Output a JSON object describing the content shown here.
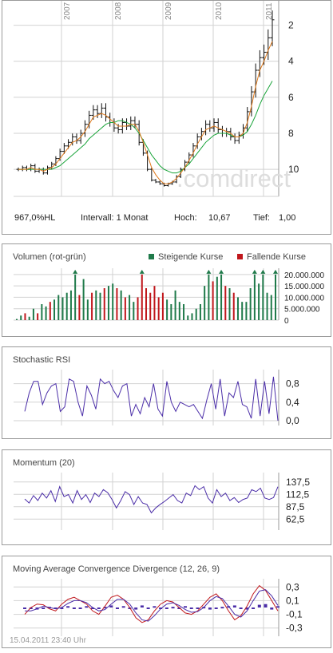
{
  "main": {
    "years": [
      "2007",
      "2008",
      "2009",
      "2010",
      "2011"
    ],
    "y_ticks": [
      "10",
      "8",
      "6",
      "4",
      "2"
    ],
    "watermark": ".comdirect",
    "change": "967,0%HL",
    "interval_label": "Intervall: 1 Monat",
    "high_label": "Hoch:",
    "high_value": "10,67",
    "low_label": "Tief:",
    "low_value": "1,00"
  },
  "colors": {
    "up": "#1f7a4a",
    "down": "#c0171c",
    "line": "#4b2ea8",
    "ma_fast": "#e07a1b",
    "ma_slow": "#1aa43a",
    "grid": "#d2d2d2"
  },
  "volume": {
    "title": "Volumen (rot-grün)",
    "legend_up": "Steigende Kurse",
    "legend_down": "Fallende Kurse",
    "ticks": [
      "20.000.000",
      "15.000.000",
      "10.000.000",
      "5.000.000",
      "0"
    ]
  },
  "stoch": {
    "title": "Stochastic RSI",
    "ticks": [
      "0,8",
      "0,4",
      "0,0"
    ]
  },
  "momentum": {
    "title": "Momentum (20)",
    "ticks": [
      "137,5",
      "112,5",
      "87,5",
      "62,5"
    ]
  },
  "macd": {
    "title": "Moving Average Convergence Divergence (12, 26, 9)",
    "ticks": [
      "0,3",
      "0,1",
      "-0,1",
      "-0,3"
    ]
  },
  "timestamp": "15.04.2011 23:40 Uhr",
  "chart_data": [
    {
      "type": "candlestick",
      "title": "",
      "ylim": [
        0.5,
        11
      ],
      "y_ticks": [
        2,
        4,
        6,
        8,
        10
      ],
      "x_labels": [
        "2007",
        "2008",
        "2009",
        "2010",
        "2011"
      ],
      "close": [
        2.0,
        2.1,
        2.0,
        2.2,
        1.9,
        2.0,
        1.8,
        2.1,
        2.3,
        2.6,
        3.0,
        3.3,
        3.5,
        3.8,
        3.6,
        4.0,
        4.5,
        5.0,
        5.3,
        5.1,
        5.4,
        4.9,
        4.6,
        4.3,
        4.2,
        4.6,
        4.4,
        4.7,
        4.5,
        3.5,
        2.9,
        2.0,
        1.4,
        1.3,
        1.2,
        1.1,
        1.2,
        1.3,
        1.6,
        2.0,
        2.4,
        2.8,
        3.3,
        3.8,
        4.1,
        4.5,
        4.3,
        4.6,
        4.2,
        4.0,
        4.1,
        3.8,
        3.6,
        3.9,
        4.3,
        5.2,
        6.3,
        7.5,
        8.2,
        8.5,
        9.3,
        10.3
      ],
      "ma_fast": [
        2.0,
        2.0,
        2.0,
        2.1,
        2.0,
        2.0,
        1.9,
        2.0,
        2.1,
        2.3,
        2.6,
        2.9,
        3.2,
        3.5,
        3.6,
        3.8,
        4.1,
        4.5,
        4.9,
        5.0,
        5.1,
        5.0,
        4.8,
        4.6,
        4.4,
        4.4,
        4.4,
        4.5,
        4.5,
        4.1,
        3.5,
        2.8,
        2.1,
        1.7,
        1.4,
        1.2,
        1.2,
        1.3,
        1.5,
        1.8,
        2.1,
        2.5,
        2.9,
        3.4,
        3.8,
        4.2,
        4.3,
        4.4,
        4.3,
        4.2,
        4.1,
        4.0,
        3.8,
        3.8,
        4.0,
        4.6,
        5.5,
        6.6,
        7.5,
        8.0,
        8.6,
        9.1
      ],
      "ma_slow": [
        2.0,
        2.0,
        2.0,
        2.0,
        2.0,
        2.0,
        2.0,
        2.0,
        2.0,
        2.1,
        2.2,
        2.4,
        2.6,
        2.8,
        3.0,
        3.2,
        3.4,
        3.7,
        3.9,
        4.1,
        4.3,
        4.5,
        4.6,
        4.6,
        4.7,
        4.7,
        4.6,
        4.5,
        4.3,
        4.0,
        3.6,
        3.2,
        2.8,
        2.5,
        2.2,
        2.0,
        1.9,
        1.8,
        1.8,
        1.9,
        2.1,
        2.3,
        2.6,
        2.9,
        3.2,
        3.5,
        3.7,
        3.9,
        4.0,
        4.0,
        4.0,
        3.9,
        3.8,
        3.8,
        3.9,
        4.1,
        4.5,
        5.0,
        5.6,
        6.1,
        6.5,
        6.9
      ]
    },
    {
      "type": "bar",
      "title": "Volumen (rot-grün)",
      "ylim": [
        0,
        21000000
      ],
      "values": [
        500000,
        2000000,
        3000000,
        1500000,
        5000000,
        3000000,
        7000000,
        6000000,
        8000000,
        9000000,
        11000000,
        10000000,
        12000000,
        13000000,
        20000000,
        11000000,
        18000000,
        9000000,
        12000000,
        13000000,
        12000000,
        14000000,
        15000000,
        16000000,
        14000000,
        13000000,
        10000000,
        11000000,
        8000000,
        10000000,
        20000000,
        14000000,
        12000000,
        15000000,
        10000000,
        12000000,
        9000000,
        7000000,
        13000000,
        8000000,
        7000000,
        2000000,
        3000000,
        5000000,
        7000000,
        15000000,
        20000000,
        17000000,
        19000000,
        20000000,
        15000000,
        14000000,
        12000000,
        10000000,
        8000000,
        8000000,
        14000000,
        20000000,
        16000000,
        20000000,
        12000000,
        11000000,
        20000000
      ],
      "up": [
        1,
        1,
        0,
        1,
        1,
        0,
        1,
        1,
        0,
        1,
        1,
        1,
        1,
        1,
        1,
        0,
        1,
        1,
        0,
        1,
        1,
        0,
        1,
        1,
        0,
        1,
        0,
        1,
        1,
        0,
        0,
        0,
        0,
        0,
        0,
        0,
        1,
        1,
        1,
        1,
        1,
        1,
        1,
        1,
        1,
        1,
        1,
        0,
        1,
        1,
        0,
        1,
        0,
        1,
        1,
        1,
        1,
        1,
        1,
        1,
        1,
        1,
        1
      ]
    },
    {
      "type": "line",
      "title": "Stochastic RSI",
      "ylim": [
        0,
        1
      ],
      "series": [
        {
          "values": [
            0.2,
            0.6,
            0.85,
            0.85,
            0.35,
            0.6,
            0.75,
            0.8,
            0.2,
            0.3,
            0.9,
            0.85,
            0.4,
            0.1,
            0.75,
            0.55,
            0.25,
            0.9,
            0.8,
            0.85,
            0.65,
            0.5,
            0.75,
            0.8,
            0.1,
            0.35,
            0.15,
            0.5,
            0.3,
            0.8,
            0.25,
            0.1,
            0.85,
            0.4,
            0.2,
            0.4,
            0.35,
            0.3,
            0.35,
            0.2,
            0.05,
            0.45,
            0.8,
            0.25,
            0.9,
            0.1,
            0.6,
            0.5,
            0.85,
            0.35,
            0.3,
            0.05,
            0.9,
            0.1,
            0.85,
            0.15,
            0.95,
            0.0
          ]
        }
      ]
    },
    {
      "type": "line",
      "title": "Momentum (20)",
      "ylim": [
        50,
        150
      ],
      "series": [
        {
          "values": [
            103,
            95,
            110,
            100,
            115,
            105,
            120,
            98,
            128,
            108,
            112,
            95,
            120,
            102,
            112,
            96,
            115,
            108,
            122,
            116,
            102,
            85,
            100,
            118,
            112,
            92,
            108,
            95,
            92,
            75,
            85,
            92,
            98,
            105,
            112,
            100,
            95,
            115,
            110,
            130,
            122,
            128,
            105,
            95,
            122,
            108,
            115,
            100,
            106,
            96,
            102,
            105,
            122,
            118,
            125,
            105,
            102,
            106,
            128
          ]
        }
      ]
    },
    {
      "type": "line",
      "title": "Moving Average Convergence Divergence (12, 26, 9)",
      "ylim": [
        -0.35,
        0.35
      ],
      "series": [
        {
          "values": [
            -0.1,
            0.0,
            0.05,
            0.04,
            -0.02,
            -0.05,
            0.05,
            0.12,
            0.15,
            0.1,
            0.05,
            -0.05,
            -0.1,
            0.02,
            0.15,
            0.18,
            0.12,
            0.0,
            -0.15,
            -0.22,
            -0.18,
            -0.05,
            0.05,
            0.1,
            0.08,
            0.0,
            -0.08,
            -0.1,
            -0.05,
            0.05,
            0.15,
            0.2,
            0.1,
            -0.05,
            -0.18,
            -0.12,
            0.02,
            0.2,
            0.32,
            0.25,
            0.1,
            -0.05
          ]
        },
        {
          "values": [
            -0.05,
            -0.05,
            -0.02,
            0.02,
            0.0,
            -0.02,
            0.0,
            0.06,
            0.1,
            0.1,
            0.07,
            0.0,
            -0.05,
            -0.03,
            0.05,
            0.12,
            0.12,
            0.05,
            -0.08,
            -0.18,
            -0.2,
            -0.12,
            -0.02,
            0.05,
            0.07,
            0.03,
            -0.03,
            -0.07,
            -0.06,
            0.0,
            0.1,
            0.16,
            0.13,
            0.02,
            -0.1,
            -0.14,
            -0.05,
            0.1,
            0.24,
            0.26,
            0.17,
            0.03
          ]
        }
      ],
      "histogram": [
        -0.01,
        -0.02,
        -0.03,
        -0.01,
        0.01,
        -0.02,
        -0.01,
        0.02,
        0.0,
        -0.01,
        0.02,
        -0.02,
        -0.01,
        0.01,
        0.03,
        -0.01,
        0.02,
        -0.02,
        -0.03,
        0.03,
        -0.01,
        0.02,
        0.0,
        -0.02,
        0.01,
        -0.01,
        0.02,
        -0.02,
        -0.01,
        0.01,
        -0.03,
        0.0,
        0.01,
        0.02,
        0.03,
        -0.02,
        -0.03,
        -0.01,
        0.04,
        0.05,
        -0.03,
        0.02
      ]
    }
  ]
}
